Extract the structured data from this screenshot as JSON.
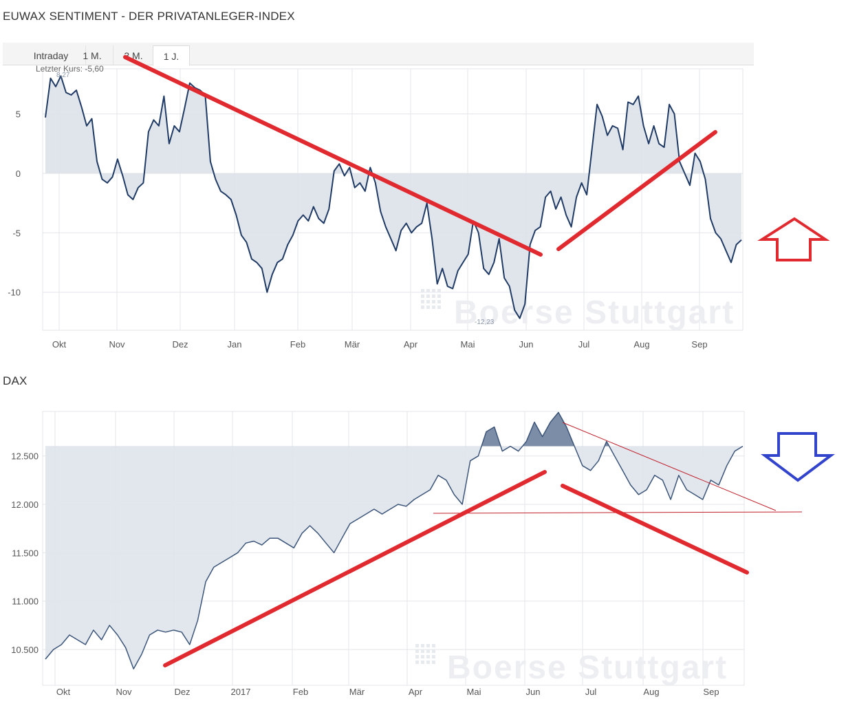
{
  "sentiment": {
    "title": "EUWAX SENTIMENT - DER PRIVATANLEGER-INDEX",
    "tabs": [
      "Intraday",
      "1 M.",
      "3 M.",
      "1 J."
    ],
    "active_tab": "1 J.",
    "last_price_label": "Letzter Kurs: -5,60",
    "max_label": "8,27",
    "min_label": "-12,23",
    "watermark": "Boerse Stuttgart",
    "colors": {
      "line": "#1f3a64",
      "area": "#dde2ea",
      "annotation": "#e02a2f",
      "arrow": "#e02a2f"
    }
  },
  "dax": {
    "title": "DAX",
    "watermark": "Boerse Stuttgart",
    "colors": {
      "line": "#3b5478",
      "area": "#dfe4ec",
      "area_dark": "#7c8da8",
      "annotation": "#e02a2f",
      "thin": "#c0202a",
      "arrow": "#3344cc"
    }
  },
  "chart_data": [
    {
      "type": "area",
      "title": "EUWAX SENTIMENT - DER PRIVATANLEGER-INDEX",
      "ylim": [
        -13.2,
        8.8
      ],
      "yticks": [
        5,
        0,
        -5,
        -10
      ],
      "ytick_labels": [
        "5",
        "0",
        "-5",
        "-10"
      ],
      "xticks": [
        "Okt",
        "Nov",
        "Dez",
        "Jan",
        "Feb",
        "Mär",
        "Apr",
        "Mai",
        "Jun",
        "Jul",
        "Aug",
        "Sep"
      ],
      "baseline": 0,
      "grid": true,
      "series": [
        {
          "values": [
            4.7,
            8.0,
            7.3,
            8.2,
            6.8,
            6.6,
            7.0,
            5.6,
            4.0,
            4.6,
            1.0,
            -0.5,
            -0.8,
            -0.3,
            1.2,
            -0.2,
            -1.8,
            -2.2,
            -1.2,
            -0.8,
            3.5,
            4.5,
            4.0,
            6.5,
            2.5,
            4.0,
            3.5,
            5.5,
            7.6,
            7.2,
            7.0,
            6.6,
            1.0,
            -0.5,
            -1.5,
            -1.8,
            -2.2,
            -3.5,
            -5.2,
            -5.8,
            -7.2,
            -7.5,
            -8.0,
            -10.0,
            -8.5,
            -7.5,
            -7.2,
            -6.0,
            -5.2,
            -4.0,
            -3.5,
            -4.0,
            -2.8,
            -3.8,
            -4.2,
            -3.0,
            0.2,
            0.8,
            -0.2,
            0.5,
            -1.2,
            -0.8,
            -1.5,
            0.5,
            -0.8,
            -3.2,
            -4.5,
            -5.5,
            -6.5,
            -4.8,
            -4.2,
            -5.0,
            -4.5,
            -4.2,
            -2.5,
            -5.5,
            -9.3,
            -8.0,
            -9.5,
            -9.7,
            -8.2,
            -7.5,
            -6.8,
            -4.0,
            -5.0,
            -8.0,
            -8.5,
            -7.5,
            -5.5,
            -8.8,
            -9.5,
            -11.5,
            -12.2,
            -11.0,
            -6.0,
            -4.8,
            -4.5,
            -2.0,
            -1.5,
            -3.0,
            -2.0,
            -3.5,
            -4.5,
            -2.0,
            -0.8,
            -1.8,
            2.0,
            5.8,
            4.8,
            3.2,
            4.0,
            3.8,
            2.0,
            6.0,
            5.8,
            6.5,
            4.0,
            2.5,
            4.0,
            2.5,
            2.2,
            5.8,
            5.0,
            1.0,
            0.0,
            -1.0,
            1.7,
            1.0,
            -0.5,
            -3.8,
            -5.0,
            -5.5,
            -6.5,
            -7.5,
            -6.0,
            -5.6
          ]
        }
      ]
    },
    {
      "type": "area",
      "title": "DAX",
      "ylim": [
        10130,
        12960
      ],
      "yticks": [
        12500,
        12000,
        11500,
        11000,
        10500
      ],
      "ytick_labels": [
        "12.500",
        "12.000",
        "11.500",
        "11.000",
        "10.500"
      ],
      "xticks": [
        "Okt",
        "Nov",
        "Dez",
        "2017",
        "Feb",
        "Mär",
        "Apr",
        "Mai",
        "Jun",
        "Jul",
        "Aug",
        "Sep"
      ],
      "baseline": 12600,
      "grid": true,
      "series": [
        {
          "values": [
            10400,
            10500,
            10550,
            10650,
            10600,
            10550,
            10700,
            10600,
            10750,
            10650,
            10520,
            10300,
            10450,
            10650,
            10700,
            10680,
            10700,
            10680,
            10550,
            10800,
            11200,
            11350,
            11400,
            11450,
            11500,
            11600,
            11620,
            11580,
            11650,
            11650,
            11600,
            11550,
            11700,
            11780,
            11700,
            11600,
            11500,
            11650,
            11800,
            11850,
            11900,
            11950,
            11900,
            11950,
            12000,
            11980,
            12050,
            12100,
            12150,
            12300,
            12250,
            12100,
            12000,
            12450,
            12500,
            12750,
            12800,
            12550,
            12600,
            12550,
            12650,
            12850,
            12700,
            12850,
            12950,
            12800,
            12600,
            12400,
            12350,
            12450,
            12650,
            12500,
            12350,
            12200,
            12100,
            12150,
            12300,
            12250,
            12050,
            12300,
            12150,
            12100,
            12050,
            12250,
            12200,
            12400,
            12550,
            12600
          ]
        }
      ]
    }
  ]
}
